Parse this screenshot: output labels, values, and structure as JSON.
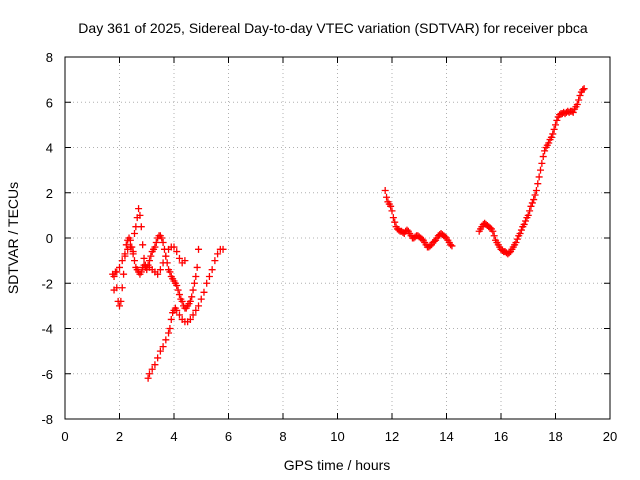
{
  "chart_data": {
    "type": "scatter",
    "title": "Day 361 of 2025, Sidereal Day-to-day VTEC variation (SDTVAR) for receiver pbca",
    "xlabel": "GPS time / hours",
    "ylabel": "SDTVAR / TECUs",
    "xlim": [
      0,
      20
    ],
    "ylim": [
      -8,
      8
    ],
    "xticks": [
      0,
      2,
      4,
      6,
      8,
      10,
      12,
      14,
      16,
      18,
      20
    ],
    "yticks": [
      -8,
      -6,
      -4,
      -2,
      0,
      2,
      4,
      6,
      8
    ],
    "grid": true,
    "marker": "plus",
    "color": "#ff0000",
    "series": [
      {
        "values": [
          [
            1.75,
            -1.6
          ],
          [
            1.8,
            -2.3
          ],
          [
            1.85,
            -1.5
          ],
          [
            1.9,
            -2.2
          ],
          [
            1.95,
            -2.8
          ],
          [
            2.0,
            -3.0
          ],
          [
            2.05,
            -2.8
          ],
          [
            2.1,
            -2.2
          ],
          [
            2.15,
            -1.6
          ],
          [
            2.2,
            -0.8
          ],
          [
            2.25,
            -0.3
          ],
          [
            2.3,
            -0.1
          ],
          [
            2.35,
            0.0
          ],
          [
            2.4,
            -0.1
          ],
          [
            2.45,
            -0.4
          ],
          [
            2.5,
            -0.7
          ],
          [
            2.55,
            -1.0
          ],
          [
            2.6,
            -1.3
          ],
          [
            2.65,
            -1.4
          ],
          [
            2.7,
            -1.5
          ],
          [
            2.75,
            -1.6
          ],
          [
            2.8,
            -1.5
          ],
          [
            2.85,
            -1.3
          ],
          [
            2.9,
            -1.2
          ],
          [
            2.95,
            -1.2
          ],
          [
            3.0,
            -1.3
          ],
          [
            3.05,
            -1.2
          ],
          [
            3.1,
            -1.0
          ],
          [
            3.15,
            -0.8
          ],
          [
            3.2,
            -0.6
          ],
          [
            3.25,
            -0.5
          ],
          [
            3.3,
            -0.4
          ],
          [
            3.35,
            -0.2
          ],
          [
            3.4,
            0.0
          ],
          [
            3.45,
            0.1
          ],
          [
            3.5,
            0.1
          ],
          [
            3.55,
            0.0
          ],
          [
            3.6,
            -0.2
          ],
          [
            3.65,
            -0.5
          ],
          [
            3.7,
            -0.8
          ],
          [
            3.75,
            -1.1
          ],
          [
            3.8,
            -1.4
          ],
          [
            3.85,
            -1.5
          ],
          [
            3.9,
            -1.7
          ],
          [
            3.95,
            -1.8
          ],
          [
            4.0,
            -1.9
          ],
          [
            4.05,
            -2.0
          ],
          [
            4.1,
            -2.1
          ],
          [
            4.15,
            -2.3
          ],
          [
            4.2,
            -2.5
          ],
          [
            4.25,
            -2.7
          ],
          [
            4.3,
            -2.8
          ],
          [
            4.35,
            -3.0
          ],
          [
            4.4,
            -3.1
          ],
          [
            4.45,
            -3.1
          ],
          [
            4.5,
            -3.0
          ],
          [
            4.55,
            -2.9
          ],
          [
            4.6,
            -2.8
          ],
          [
            4.65,
            -2.6
          ],
          [
            4.7,
            -2.3
          ],
          [
            4.75,
            -2.0
          ],
          [
            4.8,
            -1.7
          ],
          [
            4.85,
            -1.3
          ],
          [
            4.9,
            -0.5
          ]
        ]
      },
      {
        "values": [
          [
            1.8,
            -1.7
          ],
          [
            1.9,
            -1.5
          ],
          [
            2.0,
            -1.3
          ],
          [
            2.1,
            -1.0
          ],
          [
            2.2,
            -0.7
          ],
          [
            2.3,
            -0.5
          ],
          [
            2.4,
            -0.4
          ],
          [
            2.5,
            -0.6
          ],
          [
            2.55,
            0.2
          ],
          [
            2.6,
            0.5
          ],
          [
            2.65,
            0.9
          ],
          [
            2.7,
            1.3
          ],
          [
            2.75,
            1.0
          ],
          [
            2.8,
            0.5
          ],
          [
            2.85,
            -0.3
          ],
          [
            2.9,
            -0.9
          ],
          [
            2.95,
            -1.3
          ],
          [
            3.0,
            -1.4
          ],
          [
            3.1,
            -1.3
          ],
          [
            3.2,
            -1.4
          ],
          [
            3.3,
            -1.5
          ],
          [
            3.4,
            -1.6
          ],
          [
            3.5,
            -1.4
          ],
          [
            3.6,
            -1.1
          ],
          [
            3.7,
            -0.8
          ],
          [
            3.8,
            -0.5
          ],
          [
            3.9,
            -0.4
          ],
          [
            4.0,
            -0.4
          ],
          [
            4.1,
            -0.6
          ],
          [
            4.2,
            -0.9
          ],
          [
            4.3,
            -1.1
          ],
          [
            4.4,
            -1.0
          ]
        ]
      },
      {
        "values": [
          [
            3.05,
            -6.2
          ],
          [
            3.1,
            -6.0
          ],
          [
            3.2,
            -5.8
          ],
          [
            3.3,
            -5.6
          ],
          [
            3.4,
            -5.3
          ],
          [
            3.5,
            -5.0
          ],
          [
            3.6,
            -4.8
          ],
          [
            3.7,
            -4.5
          ],
          [
            3.8,
            -4.2
          ],
          [
            3.85,
            -4.0
          ],
          [
            3.9,
            -3.6
          ],
          [
            3.95,
            -3.3
          ],
          [
            4.0,
            -3.2
          ],
          [
            4.05,
            -3.1
          ],
          [
            4.1,
            -3.2
          ],
          [
            4.2,
            -3.4
          ],
          [
            4.3,
            -3.6
          ],
          [
            4.4,
            -3.7
          ],
          [
            4.5,
            -3.7
          ],
          [
            4.6,
            -3.6
          ],
          [
            4.7,
            -3.4
          ],
          [
            4.8,
            -3.2
          ],
          [
            4.9,
            -3.0
          ],
          [
            5.0,
            -2.7
          ],
          [
            5.1,
            -2.4
          ],
          [
            5.2,
            -2.0
          ],
          [
            5.3,
            -1.7
          ],
          [
            5.4,
            -1.4
          ],
          [
            5.5,
            -1.0
          ],
          [
            5.6,
            -0.7
          ],
          [
            5.7,
            -0.5
          ],
          [
            5.8,
            -0.5
          ]
        ]
      },
      {
        "values": [
          [
            11.75,
            2.1
          ],
          [
            11.8,
            1.8
          ],
          [
            11.85,
            1.6
          ],
          [
            11.9,
            1.5
          ],
          [
            11.95,
            1.4
          ],
          [
            12.0,
            1.2
          ],
          [
            12.05,
            0.9
          ],
          [
            12.1,
            0.7
          ],
          [
            12.15,
            0.5
          ],
          [
            12.2,
            0.4
          ],
          [
            12.25,
            0.35
          ],
          [
            12.3,
            0.3
          ],
          [
            12.35,
            0.3
          ],
          [
            12.4,
            0.25
          ],
          [
            12.45,
            0.2
          ],
          [
            12.5,
            0.3
          ],
          [
            12.55,
            0.35
          ],
          [
            12.6,
            0.3
          ],
          [
            12.65,
            0.2
          ],
          [
            12.7,
            0.1
          ],
          [
            12.75,
            0.0
          ],
          [
            12.8,
            0.0
          ],
          [
            12.85,
            0.05
          ],
          [
            12.9,
            0.1
          ],
          [
            12.95,
            0.1
          ],
          [
            13.0,
            0.05
          ],
          [
            13.05,
            0.0
          ],
          [
            13.1,
            -0.05
          ],
          [
            13.15,
            -0.1
          ],
          [
            13.2,
            -0.2
          ],
          [
            13.25,
            -0.3
          ],
          [
            13.3,
            -0.4
          ],
          [
            13.35,
            -0.4
          ],
          [
            13.4,
            -0.35
          ],
          [
            13.45,
            -0.3
          ],
          [
            13.5,
            -0.2
          ],
          [
            13.55,
            -0.15
          ],
          [
            13.6,
            -0.1
          ],
          [
            13.65,
            0.0
          ],
          [
            13.7,
            0.1
          ],
          [
            13.75,
            0.15
          ],
          [
            13.8,
            0.2
          ],
          [
            13.85,
            0.15
          ],
          [
            13.9,
            0.1
          ],
          [
            13.95,
            0.05
          ],
          [
            14.0,
            0.0
          ],
          [
            14.05,
            -0.1
          ],
          [
            14.1,
            -0.2
          ],
          [
            14.15,
            -0.3
          ],
          [
            14.2,
            -0.35
          ]
        ]
      },
      {
        "values": [
          [
            15.2,
            0.3
          ],
          [
            15.25,
            0.4
          ],
          [
            15.3,
            0.5
          ],
          [
            15.35,
            0.6
          ],
          [
            15.4,
            0.65
          ],
          [
            15.45,
            0.6
          ],
          [
            15.5,
            0.55
          ],
          [
            15.55,
            0.5
          ],
          [
            15.6,
            0.45
          ],
          [
            15.65,
            0.4
          ],
          [
            15.7,
            0.3
          ],
          [
            15.75,
            0.1
          ],
          [
            15.8,
            -0.1
          ],
          [
            15.85,
            -0.2
          ],
          [
            15.9,
            -0.3
          ],
          [
            15.95,
            -0.4
          ],
          [
            16.0,
            -0.5
          ],
          [
            16.05,
            -0.55
          ],
          [
            16.1,
            -0.6
          ],
          [
            16.15,
            -0.6
          ],
          [
            16.2,
            -0.65
          ],
          [
            16.25,
            -0.7
          ],
          [
            16.3,
            -0.65
          ],
          [
            16.35,
            -0.6
          ],
          [
            16.4,
            -0.5
          ],
          [
            16.45,
            -0.4
          ],
          [
            16.5,
            -0.3
          ],
          [
            16.55,
            -0.2
          ],
          [
            16.6,
            -0.05
          ],
          [
            16.65,
            0.1
          ],
          [
            16.7,
            0.2
          ],
          [
            16.75,
            0.35
          ],
          [
            16.8,
            0.5
          ],
          [
            16.85,
            0.6
          ],
          [
            16.9,
            0.75
          ],
          [
            16.95,
            0.9
          ],
          [
            17.0,
            1.0
          ],
          [
            17.05,
            1.2
          ],
          [
            17.1,
            1.4
          ],
          [
            17.15,
            1.55
          ],
          [
            17.2,
            1.7
          ],
          [
            17.25,
            1.9
          ],
          [
            17.3,
            2.1
          ],
          [
            17.35,
            2.4
          ],
          [
            17.4,
            2.7
          ],
          [
            17.45,
            3.0
          ],
          [
            17.5,
            3.3
          ],
          [
            17.55,
            3.6
          ],
          [
            17.6,
            3.85
          ],
          [
            17.65,
            4.0
          ],
          [
            17.7,
            4.1
          ],
          [
            17.75,
            4.2
          ],
          [
            17.8,
            4.35
          ],
          [
            17.85,
            4.45
          ],
          [
            17.9,
            4.6
          ],
          [
            17.95,
            4.8
          ],
          [
            18.0,
            5.0
          ],
          [
            18.05,
            5.2
          ],
          [
            18.1,
            5.35
          ],
          [
            18.15,
            5.45
          ],
          [
            18.2,
            5.5
          ],
          [
            18.25,
            5.5
          ],
          [
            18.3,
            5.55
          ],
          [
            18.35,
            5.5
          ],
          [
            18.4,
            5.55
          ],
          [
            18.45,
            5.6
          ],
          [
            18.5,
            5.55
          ],
          [
            18.55,
            5.6
          ],
          [
            18.6,
            5.6
          ],
          [
            18.65,
            5.55
          ],
          [
            18.7,
            5.7
          ],
          [
            18.75,
            5.8
          ],
          [
            18.8,
            5.9
          ],
          [
            18.85,
            6.1
          ],
          [
            18.9,
            6.3
          ],
          [
            18.95,
            6.45
          ],
          [
            19.0,
            6.55
          ],
          [
            19.05,
            6.6
          ]
        ]
      }
    ]
  }
}
